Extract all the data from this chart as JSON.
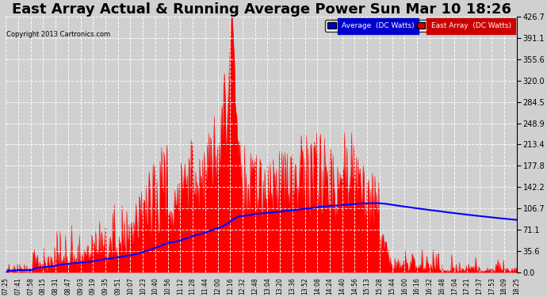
{
  "title": "East Array Actual & Running Average Power Sun Mar 10 18:26",
  "copyright": "Copyright 2013 Cartronics.com",
  "legend_labels": [
    "Average  (DC Watts)",
    "East Array  (DC Watts)"
  ],
  "legend_colors": [
    "#0000cc",
    "#cc0000"
  ],
  "yticks": [
    0.0,
    35.6,
    71.1,
    106.7,
    142.2,
    177.8,
    213.4,
    248.9,
    284.5,
    320.0,
    355.6,
    391.1,
    426.7
  ],
  "ymax": 426.7,
  "background_color": "#d0d0d0",
  "title_fontsize": 13,
  "x_labels": [
    "07:25",
    "07:41",
    "07:58",
    "08:15",
    "08:31",
    "08:47",
    "09:03",
    "09:19",
    "09:35",
    "09:51",
    "10:07",
    "10:23",
    "10:40",
    "10:56",
    "11:12",
    "11:28",
    "11:44",
    "12:00",
    "12:16",
    "12:32",
    "12:48",
    "13:04",
    "13:20",
    "13:36",
    "13:52",
    "14:08",
    "14:24",
    "14:40",
    "14:56",
    "15:13",
    "15:28",
    "15:44",
    "16:00",
    "16:16",
    "16:32",
    "16:48",
    "17:04",
    "17:21",
    "17:37",
    "17:53",
    "18:09",
    "18:25"
  ]
}
